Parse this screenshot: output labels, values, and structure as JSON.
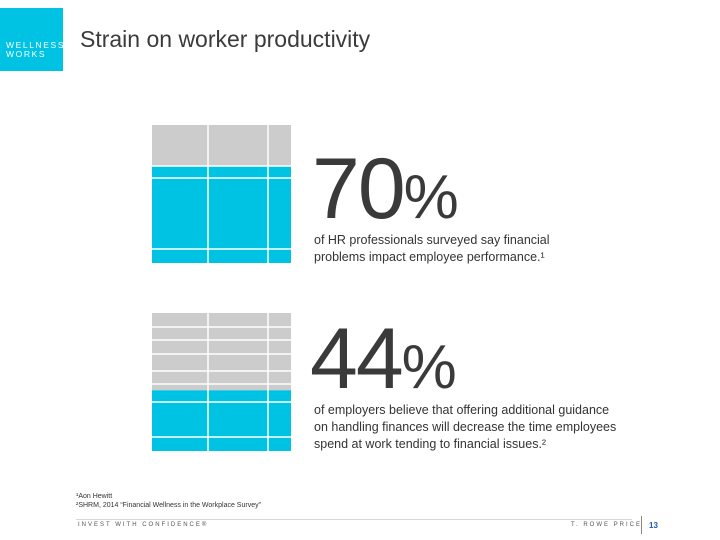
{
  "logo": {
    "line1": "WELLNESS",
    "line2": "WORKS",
    "bg_color": "#00c3e3"
  },
  "title": "Strain on worker productivity",
  "stat1": {
    "number": "70",
    "symbol": "%",
    "value_percent": 70,
    "text_line1": "of HR professionals surveyed say financial",
    "text_line2": "problems impact employee performance.¹"
  },
  "stat2": {
    "number": "44",
    "symbol": "%",
    "value_percent": 44,
    "text_line1": "of employers believe that offering additional guidance",
    "text_line2": "on handling finances will decrease the time employees",
    "text_line3": "spend at work tending to financial issues.²"
  },
  "colors": {
    "filled": "#00c3e3",
    "empty": "#cccccc",
    "grid_line": "#ffffff"
  },
  "footnotes": {
    "note1": "¹Aon Hewitt",
    "note2": "²SHRM, 2014 “Financial Wellness in the Workplace Survey”"
  },
  "footer": {
    "tagline": "INVEST WITH CONFIDENCE®",
    "brand": "T. ROWE PRICE",
    "page_number": "13"
  }
}
